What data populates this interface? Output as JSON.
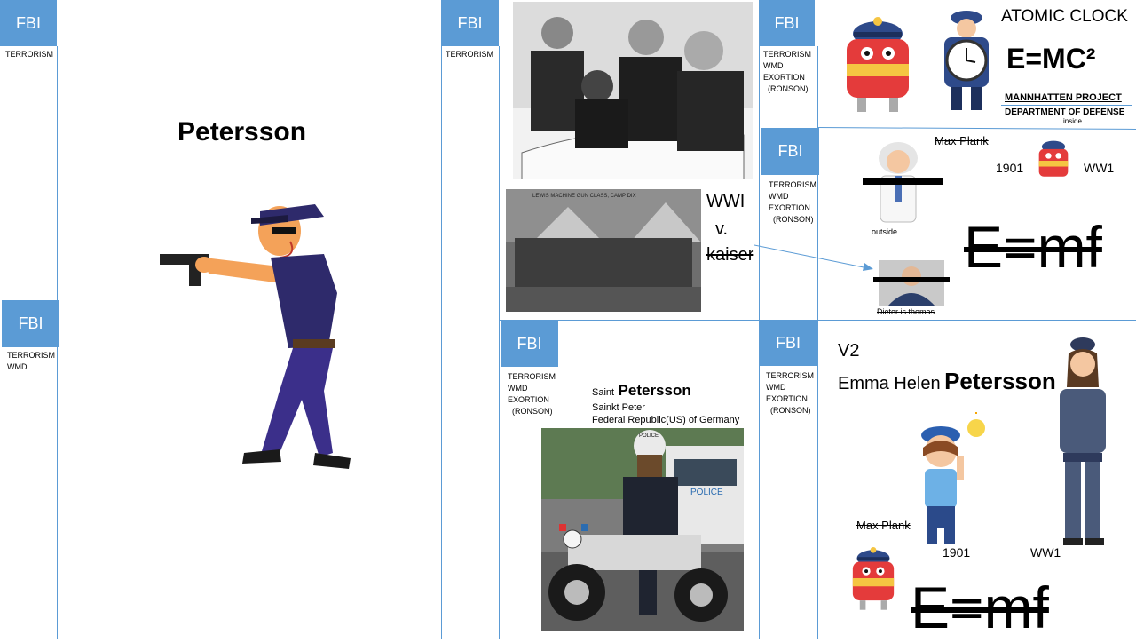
{
  "fbi_label": "FBI",
  "tags": {
    "t1": "TERRORISM",
    "t2": "TERRORISM\nWMD",
    "t3": "TERRORISM",
    "t4": "TERRORISM\nWMD\nEXORTION\n  (RONSON)"
  },
  "left": {
    "name": "Petersson"
  },
  "center": {
    "wwi": "WWI",
    "v": "v.",
    "kaiser": "kaiser",
    "photo_caption": "LEWIS MACHINE GUN CLASS, CAMP DIX",
    "saint": "Saint",
    "saint_name": "Petersson",
    "sainkt": "Sainkt Peter",
    "republic": "Federal Republic(US) of Germany",
    "police_helmet": "POLICE",
    "car_text": "POLICE"
  },
  "top_right": {
    "atomic_clock": "ATOMIC CLOCK",
    "emc2": "E=MC²",
    "manhattan": "MANNHATTEN PROJECT",
    "defense": "DEPARTMENT OF DEFENSE",
    "inside": "inside"
  },
  "mid_right": {
    "max_plank": "Max Plank",
    "year": "1901",
    "ww1": "WW1",
    "outside": "outside",
    "emf": "E=mf",
    "dieter": "Dieter is thomas"
  },
  "bottom_right": {
    "v2": "V2",
    "emma": "Emma Helen",
    "emma_last": "Petersson",
    "max_plank": "Max Plank",
    "year": "1901",
    "ww1": "WW1",
    "emf": "E=mf"
  },
  "colors": {
    "fbi_blue": "#5b9bd5",
    "line_blue": "#5b9bd5"
  }
}
